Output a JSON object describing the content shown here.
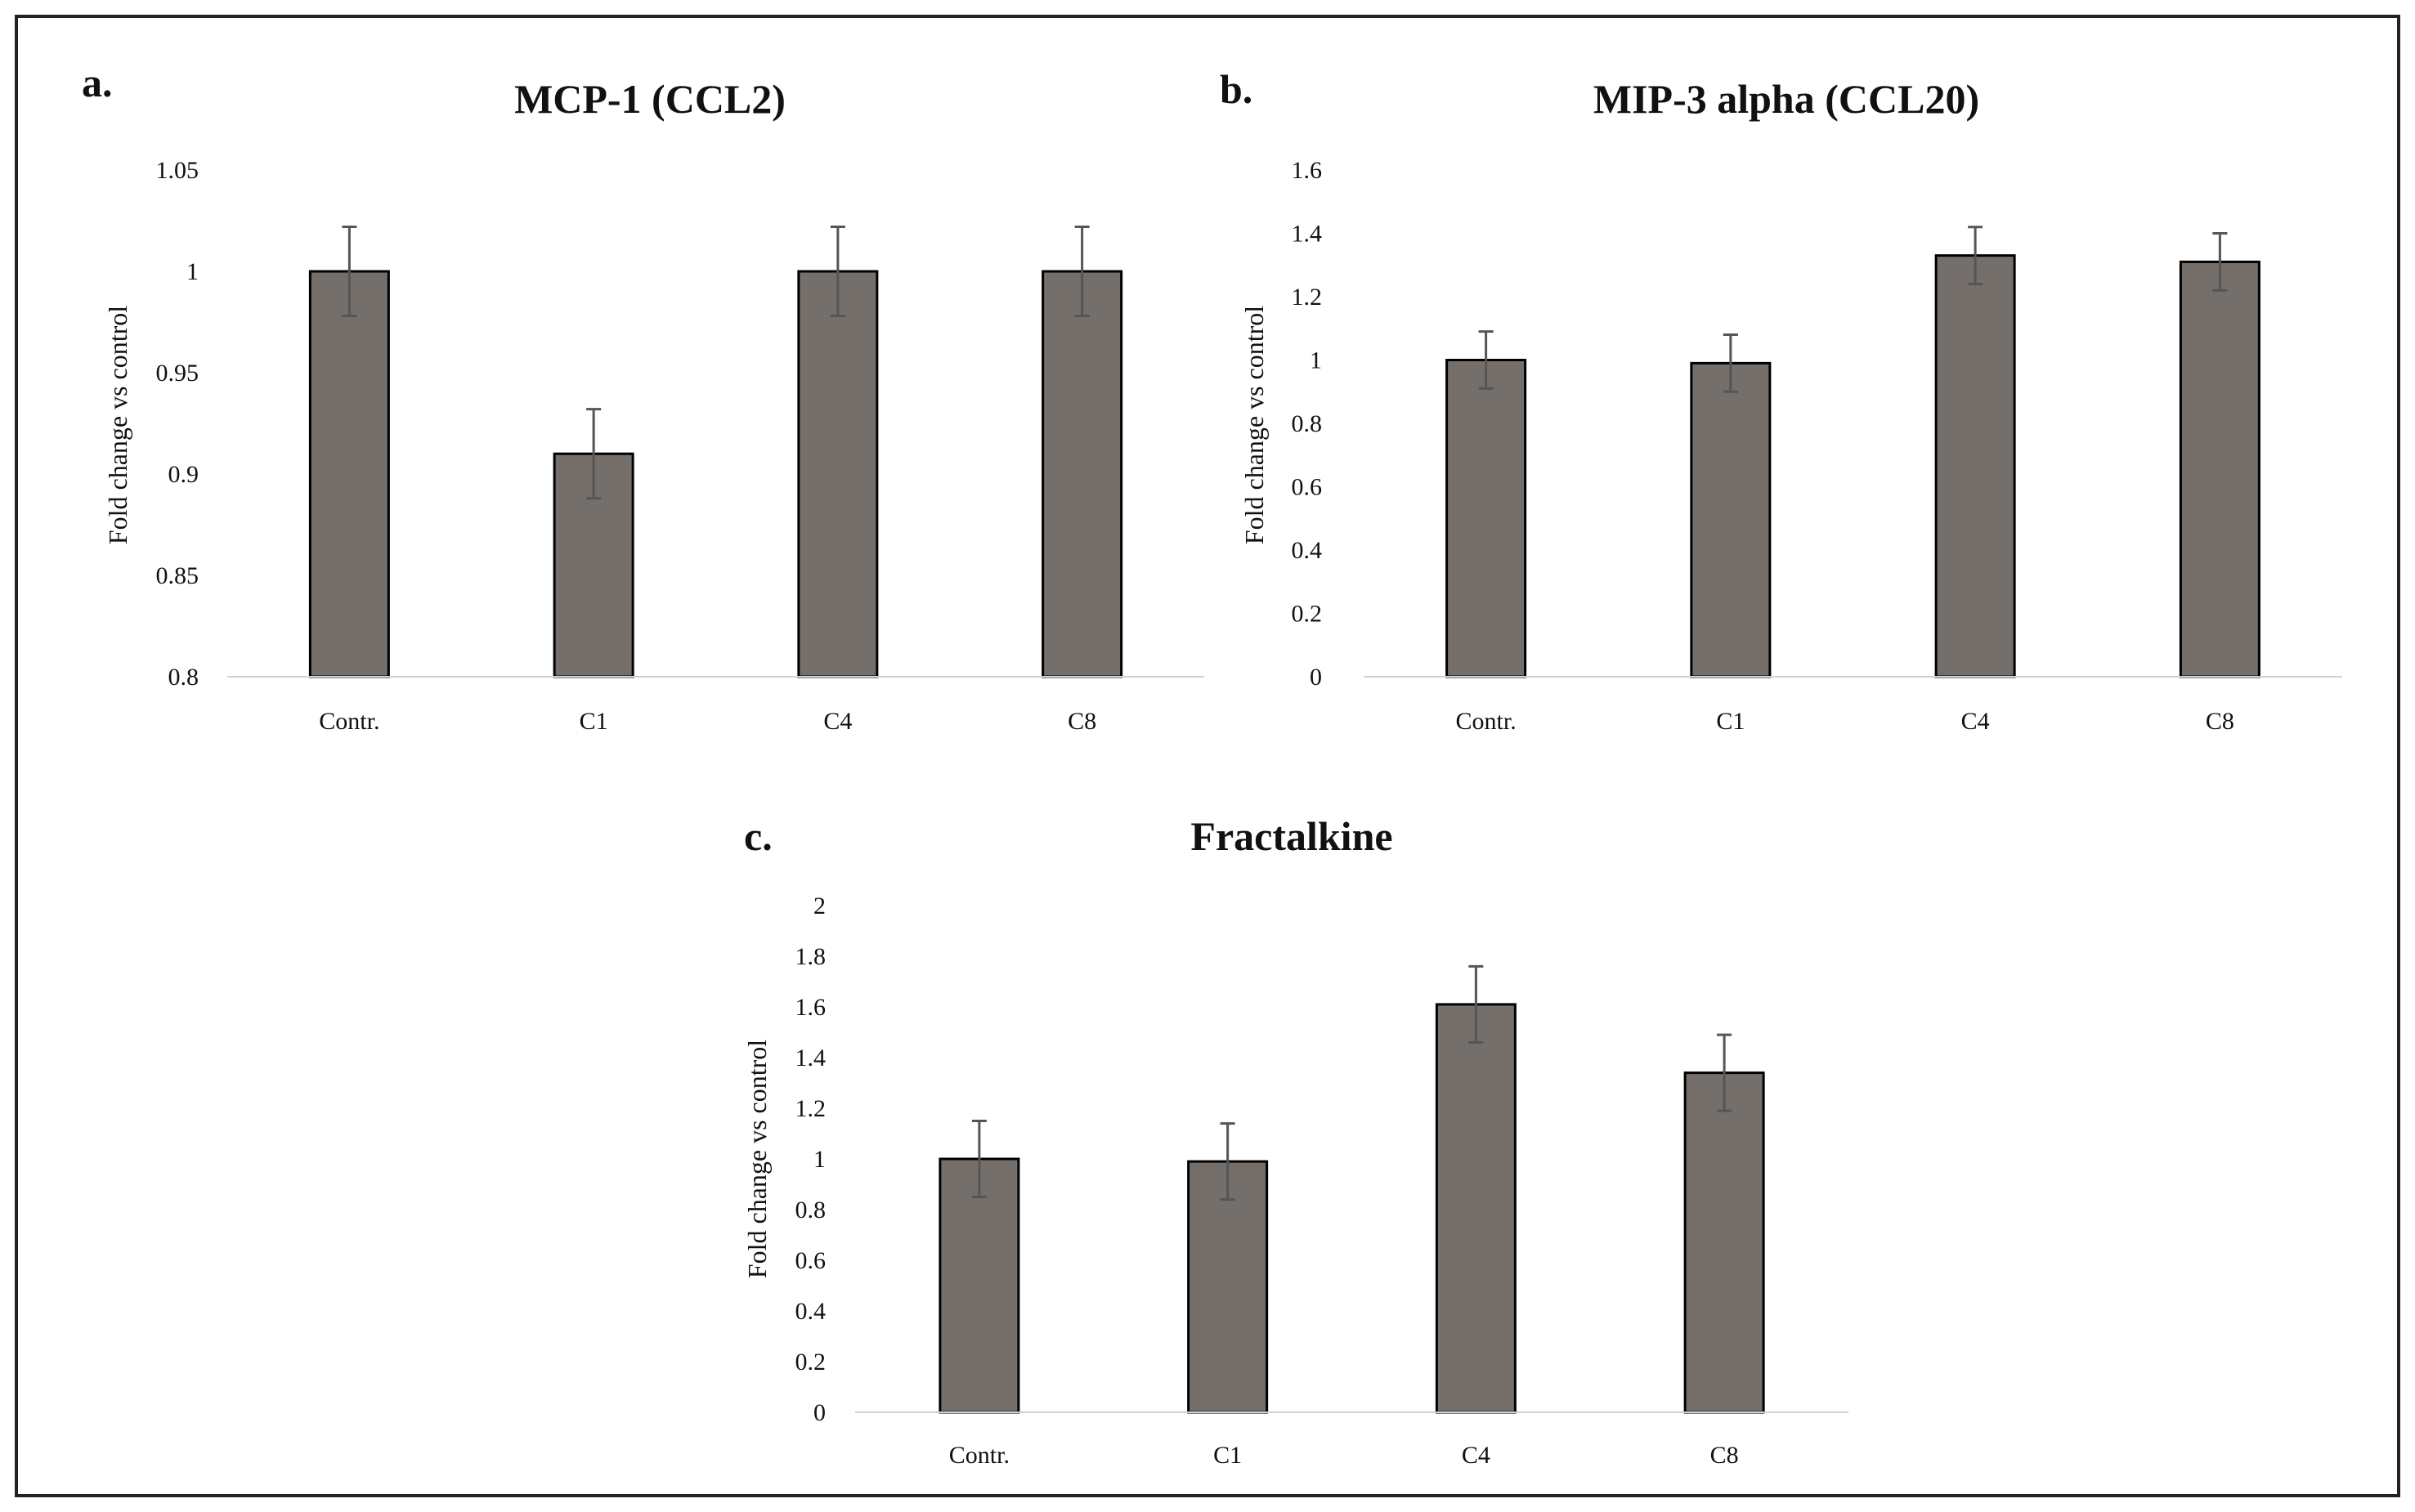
{
  "colors": {
    "bar_fill": "#756f6c",
    "bar_stroke": "#000000",
    "error_bar": "#555555",
    "axis_line": "#d0d0d0",
    "frame": "#222222"
  },
  "chart_data": [
    {
      "type": "bar",
      "panel": "a.",
      "title": "MCP-1 (CCL2)",
      "categories": [
        "Contr.",
        "C1",
        "C4",
        "C8"
      ],
      "values": [
        1.0,
        0.91,
        1.0,
        1.0
      ],
      "errors": [
        0.022,
        0.022,
        0.022,
        0.022
      ],
      "xlabel": "",
      "ylabel": "Fold change vs control",
      "ylim": [
        0.8,
        1.05
      ],
      "yticks": [
        0.8,
        0.85,
        0.9,
        0.95,
        1,
        1.05
      ],
      "ytick_labels": [
        "0.8",
        "0.85",
        "0.9",
        "0.95",
        "1",
        "1.05"
      ],
      "grid": false,
      "legend": "none"
    },
    {
      "type": "bar",
      "panel": "b.",
      "title": "MIP-3 alpha (CCL20)",
      "categories": [
        "Contr.",
        "C1",
        "C4",
        "C8"
      ],
      "values": [
        1.0,
        0.99,
        1.33,
        1.31
      ],
      "errors": [
        0.09,
        0.09,
        0.09,
        0.09
      ],
      "xlabel": "",
      "ylabel": "Fold change vs control",
      "ylim": [
        0,
        1.6
      ],
      "yticks": [
        0,
        0.2,
        0.4,
        0.6,
        0.8,
        1,
        1.2,
        1.4,
        1.6
      ],
      "ytick_labels": [
        "0",
        "0.2",
        "0.4",
        "0.6",
        "0.8",
        "1",
        "1.2",
        "1.4",
        "1.6"
      ],
      "grid": false,
      "legend": "none"
    },
    {
      "type": "bar",
      "panel": "c.",
      "title": "Fractalkine",
      "categories": [
        "Contr.",
        "C1",
        "C4",
        "C8"
      ],
      "values": [
        1.0,
        0.99,
        1.61,
        1.34
      ],
      "errors": [
        0.15,
        0.15,
        0.15,
        0.15
      ],
      "xlabel": "",
      "ylabel": "Fold change vs control",
      "ylim": [
        0,
        2
      ],
      "yticks": [
        0,
        0.2,
        0.4,
        0.6,
        0.8,
        1,
        1.2,
        1.4,
        1.6,
        1.8,
        2
      ],
      "ytick_labels": [
        "0",
        "0.2",
        "0.4",
        "0.6",
        "0.8",
        "1",
        "1.2",
        "1.4",
        "1.6",
        "1.8",
        "2"
      ],
      "grid": false,
      "legend": "none"
    }
  ]
}
